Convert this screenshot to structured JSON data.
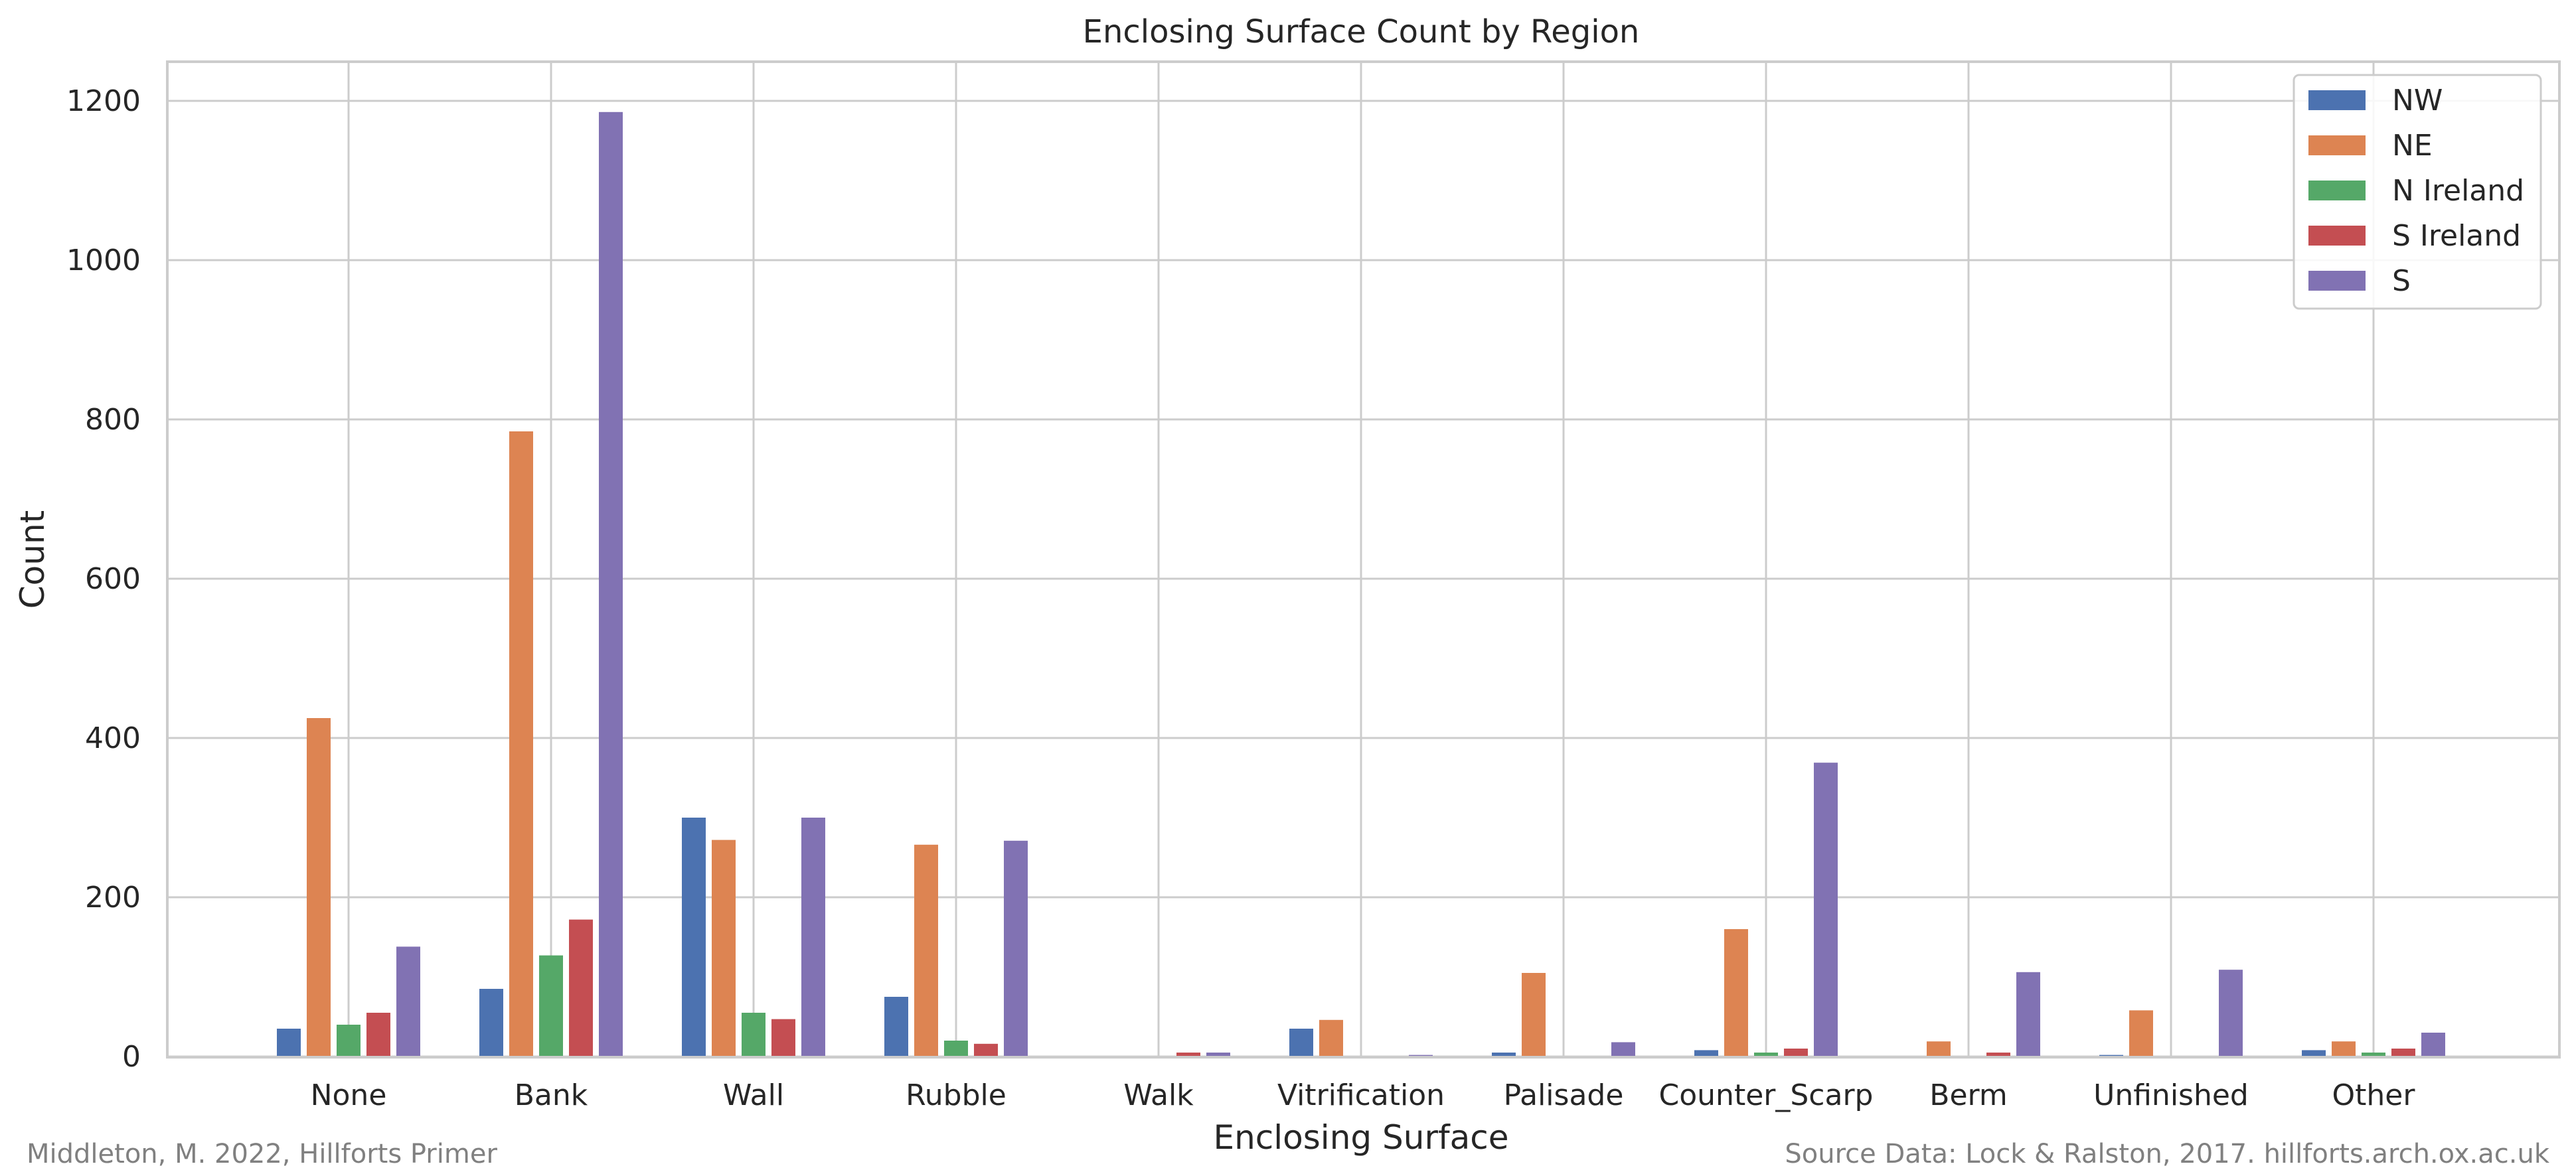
{
  "chart_data": {
    "type": "bar",
    "title": "Enclosing Surface Count by Region",
    "xlabel": "Enclosing Surface",
    "ylabel": "Count",
    "ylim": [
      0,
      1250
    ],
    "yticks": [
      0,
      200,
      400,
      600,
      800,
      1000,
      1200
    ],
    "grid": true,
    "legend_position": "top-right",
    "categories": [
      "None",
      "Bank",
      "Wall",
      "Rubble",
      "Walk",
      "Vitrification",
      "Palisade",
      "Counter_Scarp",
      "Berm",
      "Unfinished",
      "Other"
    ],
    "series": [
      {
        "name": "NW",
        "color": "#4c72b0",
        "values": [
          35,
          85,
          300,
          75,
          0,
          35,
          5,
          8,
          0,
          2,
          8
        ]
      },
      {
        "name": "NE",
        "color": "#dd8452",
        "values": [
          425,
          785,
          272,
          266,
          0,
          46,
          105,
          160,
          19,
          58,
          19
        ]
      },
      {
        "name": "N Ireland",
        "color": "#55a868",
        "values": [
          40,
          127,
          55,
          20,
          0,
          0,
          0,
          5,
          0,
          0,
          5
        ]
      },
      {
        "name": "S Ireland",
        "color": "#c44e52",
        "values": [
          55,
          172,
          47,
          16,
          5,
          0,
          0,
          10,
          5,
          0,
          10
        ]
      },
      {
        "name": "S",
        "color": "#8172b3",
        "values": [
          138,
          1186,
          300,
          271,
          5,
          2,
          18,
          369,
          106,
          109,
          30
        ]
      }
    ]
  },
  "footer": {
    "left": "Middleton, M. 2022, Hillforts Primer",
    "right": "Source Data: Lock & Ralston, 2017. hillforts.arch.ox.ac.uk"
  }
}
